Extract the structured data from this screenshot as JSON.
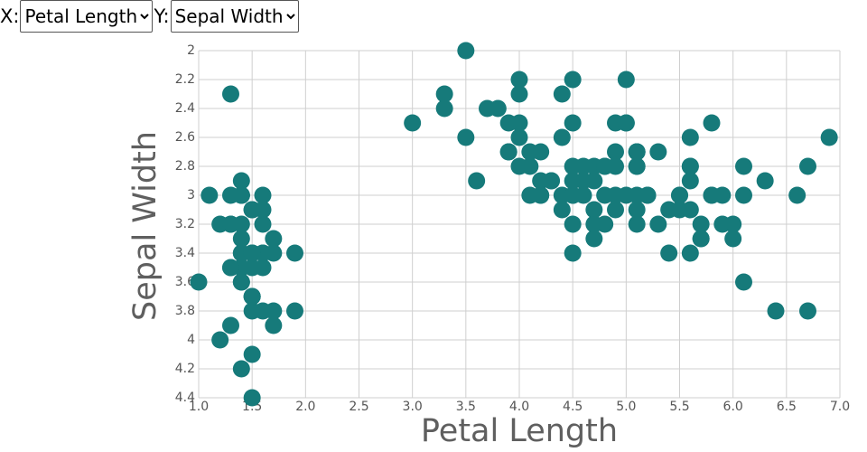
{
  "controls": [
    {
      "label": "X:",
      "selected": "Petal Length"
    },
    {
      "label": "Y:",
      "selected": "Sepal Width"
    }
  ],
  "chart_data": {
    "type": "scatter",
    "x_label": "Petal Length",
    "y_label": "Sepal Width",
    "xlim": [
      1.0,
      7.0
    ],
    "xticks": [
      {
        "value": 1.0,
        "label": "1.0"
      },
      {
        "value": 1.5,
        "label": "1.5"
      },
      {
        "value": 2.0,
        "label": "2.0"
      },
      {
        "value": 2.5,
        "label": "2.5"
      },
      {
        "value": 3.0,
        "label": "3.0"
      },
      {
        "value": 3.5,
        "label": "3.5"
      },
      {
        "value": 4.0,
        "label": "4.0"
      },
      {
        "value": 4.5,
        "label": "4.5"
      },
      {
        "value": 5.0,
        "label": "5.0"
      },
      {
        "value": 5.5,
        "label": "5.5"
      },
      {
        "value": 6.0,
        "label": "6.0"
      },
      {
        "value": 6.5,
        "label": "6.5"
      },
      {
        "value": 7.0,
        "label": "7.0"
      }
    ],
    "ylim": [
      2,
      4.4
    ],
    "yticks": [
      2,
      2.2,
      2.4,
      2.6,
      2.8,
      3,
      3.2,
      3.4,
      3.6,
      3.8,
      4,
      4.2,
      4.4
    ],
    "y_reversed": true,
    "grid": true,
    "series": [
      {
        "color": "#167a7a",
        "x": [
          1.4,
          1.4,
          1.3,
          1.5,
          1.4,
          1.7,
          1.4,
          1.5,
          1.4,
          1.5,
          1.5,
          1.6,
          1.4,
          1.1,
          1.2,
          1.5,
          1.3,
          1.4,
          1.7,
          1.5,
          1.7,
          1.5,
          1.0,
          1.7,
          1.9,
          1.6,
          1.6,
          1.5,
          1.4,
          1.6,
          1.6,
          1.5,
          1.5,
          1.4,
          1.5,
          1.2,
          1.3,
          1.4,
          1.3,
          1.5,
          1.3,
          1.3,
          1.3,
          1.6,
          1.9,
          1.4,
          1.6,
          1.4,
          1.5,
          1.4,
          4.7,
          4.5,
          4.9,
          4.0,
          4.6,
          4.5,
          4.7,
          3.3,
          4.6,
          3.9,
          3.5,
          4.2,
          4.0,
          4.7,
          3.6,
          4.4,
          4.5,
          4.1,
          4.5,
          3.9,
          4.8,
          4.0,
          4.9,
          4.7,
          4.3,
          4.4,
          4.8,
          5.0,
          4.5,
          3.5,
          3.8,
          3.7,
          3.9,
          5.1,
          4.5,
          4.5,
          4.7,
          4.4,
          4.1,
          4.0,
          4.4,
          4.6,
          4.0,
          3.3,
          4.2,
          4.2,
          4.2,
          4.3,
          3.0,
          4.1,
          6.0,
          5.1,
          5.9,
          5.6,
          5.8,
          6.6,
          4.5,
          6.3,
          5.8,
          6.1,
          5.1,
          5.3,
          5.5,
          5.0,
          5.1,
          5.3,
          5.5,
          6.7,
          6.9,
          5.0,
          5.7,
          4.9,
          6.7,
          4.9,
          5.7,
          6.0,
          4.8,
          4.9,
          5.6,
          5.8,
          6.1,
          6.4,
          5.6,
          5.1,
          5.6,
          6.1,
          5.6,
          5.5,
          4.8,
          5.4,
          5.6,
          5.1,
          5.1,
          5.9,
          5.7,
          5.2,
          5.0,
          5.2,
          5.4,
          5.1
        ],
        "values": [
          3.5,
          3.0,
          3.2,
          3.1,
          3.6,
          3.9,
          3.4,
          3.4,
          2.9,
          3.1,
          3.7,
          3.4,
          3.0,
          3.0,
          4.0,
          4.4,
          3.9,
          3.5,
          3.8,
          3.8,
          3.4,
          3.7,
          3.6,
          3.3,
          3.4,
          3.0,
          3.4,
          3.5,
          3.4,
          3.2,
          3.1,
          3.4,
          4.1,
          4.2,
          3.1,
          3.2,
          3.5,
          3.6,
          3.0,
          3.4,
          3.5,
          2.3,
          3.2,
          3.5,
          3.8,
          3.0,
          3.8,
          3.2,
          3.7,
          3.3,
          3.2,
          3.2,
          3.1,
          2.3,
          2.8,
          2.8,
          3.3,
          2.4,
          2.9,
          2.7,
          2.0,
          3.0,
          2.2,
          2.9,
          2.9,
          3.1,
          3.0,
          2.7,
          2.2,
          2.5,
          3.2,
          2.8,
          2.5,
          2.8,
          2.9,
          3.0,
          2.8,
          3.0,
          2.9,
          2.6,
          2.4,
          2.4,
          2.7,
          2.7,
          3.0,
          3.4,
          3.1,
          2.3,
          3.0,
          2.5,
          2.6,
          3.0,
          2.6,
          2.3,
          2.7,
          3.0,
          2.9,
          2.9,
          2.5,
          2.8,
          3.3,
          2.7,
          3.0,
          2.9,
          3.0,
          3.0,
          2.5,
          2.9,
          2.5,
          3.6,
          3.2,
          2.7,
          3.0,
          2.5,
          2.8,
          3.2,
          3.0,
          3.8,
          2.6,
          2.2,
          3.2,
          2.8,
          2.8,
          2.7,
          3.3,
          3.2,
          2.8,
          3.0,
          2.8,
          3.0,
          2.8,
          3.8,
          2.8,
          2.8,
          2.6,
          3.0,
          3.4,
          3.1,
          3.0,
          3.1,
          3.1,
          3.1,
          2.7,
          3.2,
          3.3,
          3.0,
          2.5,
          3.0,
          3.4,
          3.0
        ]
      }
    ]
  }
}
